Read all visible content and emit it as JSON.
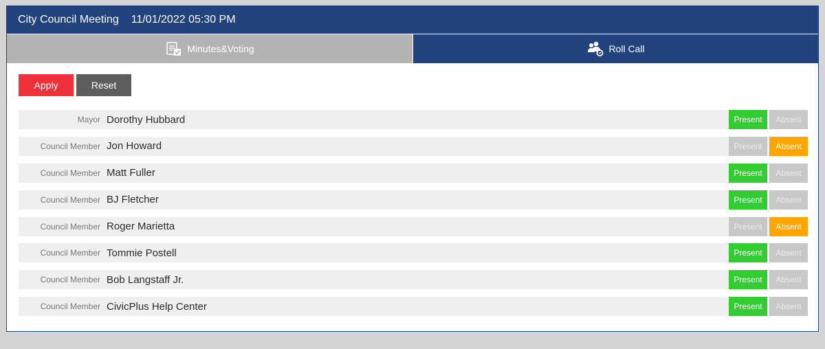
{
  "header": {
    "title": "City Council Meeting",
    "datetime": "11/01/2022 05:30 PM"
  },
  "tabs": [
    {
      "label": "Minutes&Voting",
      "icon": "checklist-icon",
      "active": false
    },
    {
      "label": "Roll Call",
      "icon": "people-icon",
      "active": true
    }
  ],
  "actions": {
    "apply_label": "Apply",
    "reset_label": "Reset"
  },
  "roll": {
    "present_label": "Present",
    "absent_label": "Absent",
    "members": [
      {
        "role": "Mayor",
        "name": "Dorothy Hubbard",
        "status": "present"
      },
      {
        "role": "Council Member",
        "name": "Jon Howard",
        "status": "absent"
      },
      {
        "role": "Council Member",
        "name": "Matt Fuller",
        "status": "present"
      },
      {
        "role": "Council Member",
        "name": "BJ Fletcher",
        "status": "present"
      },
      {
        "role": "Council Member",
        "name": "Roger Marietta",
        "status": "absent"
      },
      {
        "role": "Council Member",
        "name": "Tommie Postell",
        "status": "present"
      },
      {
        "role": "Council Member",
        "name": "Bob Langstaff Jr.",
        "status": "present"
      },
      {
        "role": "Council Member",
        "name": "CivicPlus Help Center",
        "status": "present"
      }
    ]
  },
  "colors": {
    "header": "#22427e",
    "present_on": "#33cc33",
    "absent_on": "#ffa500",
    "off": "#c8c8c8",
    "apply": "#f0303a",
    "reset": "#5d5d5d"
  }
}
